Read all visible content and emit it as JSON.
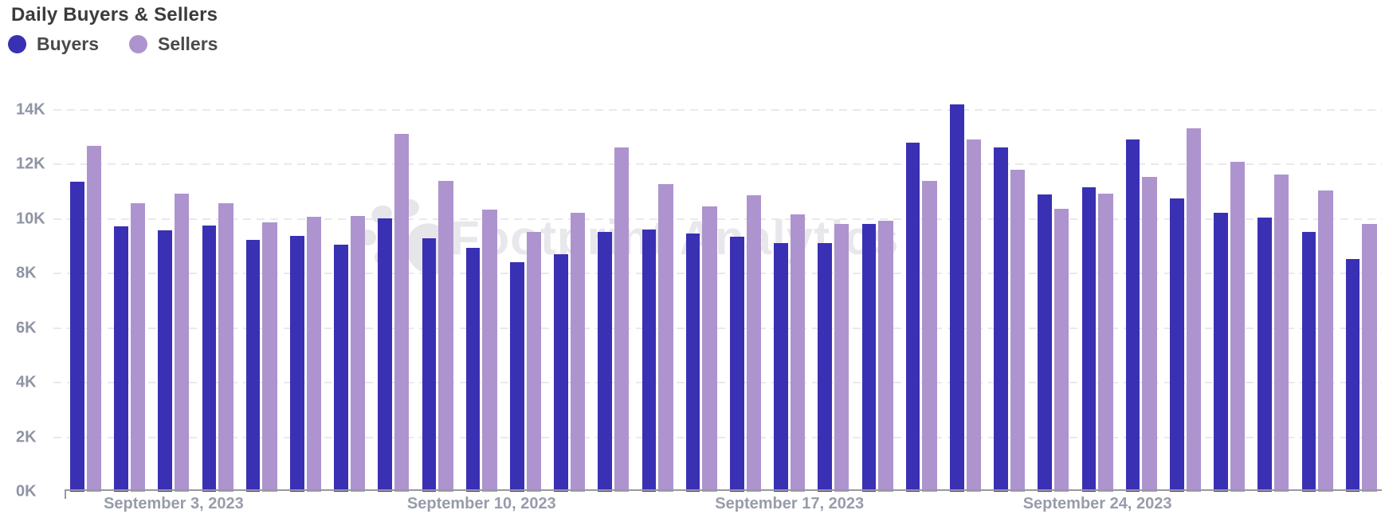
{
  "chart": {
    "title": "Daily Buyers & Sellers",
    "watermark_text": "Footprint Analytics",
    "colors": {
      "buyers": "#3930b4",
      "sellers": "#ad94ce",
      "grid": "#e9e9ec",
      "axis": "#98989e",
      "title_text": "#3b3b3b",
      "y_tick_text": "#8f94a4",
      "x_tick_text": "#979caa",
      "watermark": "#e8e8ec"
    }
  },
  "chart_data": {
    "type": "bar",
    "title": "Daily Buyers & Sellers",
    "legend_position": "top-left",
    "grid": "horizontal-dashed",
    "ylim": [
      0,
      14000
    ],
    "y_ticks": [
      {
        "label": "0K",
        "value": 0
      },
      {
        "label": "2K",
        "value": 2000
      },
      {
        "label": "4K",
        "value": 4000
      },
      {
        "label": "6K",
        "value": 6000
      },
      {
        "label": "8K",
        "value": 8000
      },
      {
        "label": "10K",
        "value": 10000
      },
      {
        "label": "12K",
        "value": 12000
      },
      {
        "label": "14K",
        "value": 14000
      }
    ],
    "x_ticks": [
      {
        "label": "September 3, 2023",
        "day_index": 2
      },
      {
        "label": "September 10, 2023",
        "day_index": 9
      },
      {
        "label": "September 17, 2023",
        "day_index": 16
      },
      {
        "label": "September 24, 2023",
        "day_index": 23
      }
    ],
    "categories": [
      "2023-09-01",
      "2023-09-02",
      "2023-09-03",
      "2023-09-04",
      "2023-09-05",
      "2023-09-06",
      "2023-09-07",
      "2023-09-08",
      "2023-09-09",
      "2023-09-10",
      "2023-09-11",
      "2023-09-12",
      "2023-09-13",
      "2023-09-14",
      "2023-09-15",
      "2023-09-16",
      "2023-09-17",
      "2023-09-18",
      "2023-09-19",
      "2023-09-20",
      "2023-09-21",
      "2023-09-22",
      "2023-09-23",
      "2023-09-24",
      "2023-09-25",
      "2023-09-26",
      "2023-09-27",
      "2023-09-28",
      "2023-09-29",
      "2023-09-30"
    ],
    "series": [
      {
        "name": "Buyers",
        "color": "#3930b4",
        "values": [
          11370,
          9730,
          9590,
          9760,
          9240,
          9380,
          9060,
          10030,
          9290,
          8940,
          8420,
          8710,
          9530,
          9620,
          9470,
          9350,
          9120,
          9120,
          9820,
          12800,
          14210,
          12630,
          10900,
          11170,
          12920,
          10760,
          10230,
          10050,
          9530,
          8540
        ]
      },
      {
        "name": "Sellers",
        "color": "#ad94ce",
        "values": [
          12690,
          10580,
          10930,
          10580,
          9880,
          10080,
          10110,
          13110,
          11400,
          10350,
          9530,
          10230,
          12630,
          11280,
          10460,
          10870,
          10170,
          9820,
          9940,
          11400,
          12920,
          11810,
          10380,
          10930,
          11550,
          13330,
          12100,
          11630,
          11050,
          9820
        ]
      }
    ]
  }
}
